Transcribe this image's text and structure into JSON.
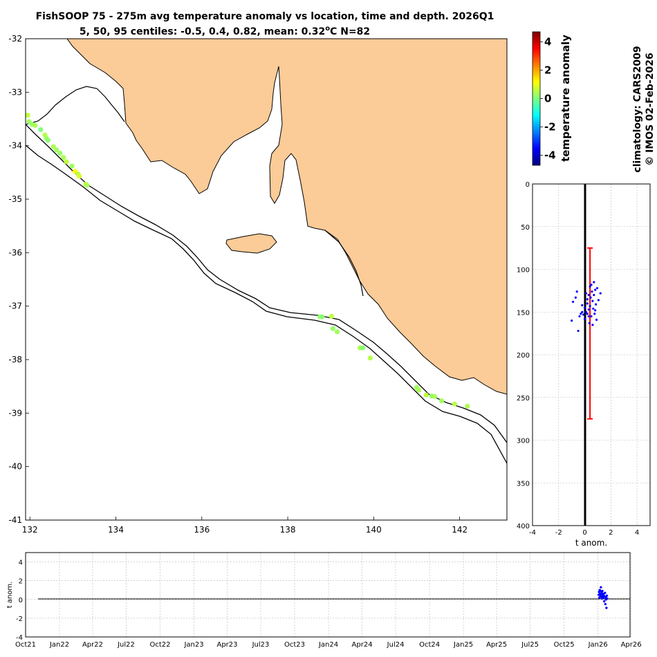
{
  "title": {
    "line1": "FishSOOP 75 - 275m avg temperature anomaly vs location, time and depth. 2026Q1",
    "line2_prefix": "5, 50, 95 centiles: -0.5, 0.4, 0.82, mean: 0.32",
    "line2_unit": "o",
    "line2_suffix": "C N=82"
  },
  "side_text": {
    "climatology": "climatology: CARS2009",
    "copyright": "© IMOS 02-Feb-2026"
  },
  "colorbar": {
    "label": "temperature anomaly",
    "range": [
      -4.7,
      4.7
    ],
    "ticks": [
      "4",
      "2",
      "0",
      "-2",
      "-4"
    ],
    "tick_values": [
      4,
      2,
      0,
      -2,
      -4
    ],
    "colors": [
      "#00007f",
      "#0000ff",
      "#007fff",
      "#00ffff",
      "#7fff7f",
      "#ffff00",
      "#ff7f00",
      "#ff0000",
      "#7f0000"
    ]
  },
  "colors": {
    "land": "#fbcb98",
    "depth_points": "#0000ff",
    "centile_bar": "#ff0000",
    "ocean": "#ffffff"
  },
  "chart_data": [
    {
      "type": "scatter",
      "name": "map",
      "xlim": [
        131.9,
        143.1
      ],
      "ylim": [
        -41,
        -32
      ],
      "xticks": [
        132,
        134,
        136,
        138,
        140,
        142
      ],
      "yticks": [
        -32,
        -33,
        -34,
        -35,
        -36,
        -37,
        -38,
        -39,
        -40,
        -41
      ],
      "xtick_labels": [
        "132",
        "134",
        "136",
        "138",
        "140",
        "142"
      ],
      "ytick_labels": [
        "-32",
        "-33",
        "-34",
        "-35",
        "-36",
        "-37",
        "-38",
        "-39",
        "-40",
        "-41"
      ],
      "points": [
        [
          131.95,
          -33.43,
          0.6
        ],
        [
          131.98,
          -33.55,
          0.3
        ],
        [
          132.05,
          -33.6,
          0.2
        ],
        [
          132.12,
          -33.62,
          0.4
        ],
        [
          132.25,
          -33.7,
          0.0
        ],
        [
          132.35,
          -33.8,
          0.5
        ],
        [
          132.38,
          -33.86,
          0.3
        ],
        [
          132.42,
          -33.9,
          0.1
        ],
        [
          132.55,
          -34.02,
          0.4
        ],
        [
          132.62,
          -34.08,
          0.3
        ],
        [
          132.7,
          -34.14,
          0.2
        ],
        [
          132.78,
          -34.22,
          0.4
        ],
        [
          132.85,
          -34.3,
          0.6
        ],
        [
          132.98,
          -34.38,
          0.3
        ],
        [
          133.05,
          -34.48,
          1.2
        ],
        [
          133.12,
          -34.53,
          0.5
        ],
        [
          133.15,
          -34.57,
          0.8
        ],
        [
          133.3,
          -34.72,
          0.6
        ],
        [
          133.33,
          -34.74,
          0.4
        ],
        [
          138.75,
          -37.2,
          0.2
        ],
        [
          138.8,
          -37.2,
          0.1
        ],
        [
          139.02,
          -37.19,
          0.6
        ],
        [
          139.05,
          -37.42,
          0.2
        ],
        [
          139.15,
          -37.48,
          0.3
        ],
        [
          139.68,
          -37.78,
          0.4
        ],
        [
          139.75,
          -37.78,
          0.1
        ],
        [
          139.92,
          -37.97,
          0.5
        ],
        [
          141.0,
          -38.52,
          0.3
        ],
        [
          141.05,
          -38.57,
          0.4
        ],
        [
          141.22,
          -38.66,
          0.6
        ],
        [
          141.35,
          -38.68,
          0.2
        ],
        [
          141.42,
          -38.69,
          0.4
        ],
        [
          141.58,
          -38.77,
          0.3
        ],
        [
          141.88,
          -38.83,
          0.5
        ],
        [
          142.18,
          -38.87,
          0.4
        ]
      ]
    },
    {
      "type": "scatter",
      "name": "depth_profile",
      "xlabel": "t anom.",
      "xlim": [
        -4,
        5
      ],
      "ylim": [
        0,
        400
      ],
      "xticks": [
        -4,
        -2,
        0,
        2,
        4
      ],
      "xtick_labels": [
        "-4",
        "-2",
        "0",
        "2",
        "4"
      ],
      "yticks": [
        0,
        50,
        100,
        150,
        200,
        250,
        300,
        350,
        400
      ],
      "ytick_labels": [
        "0",
        "50",
        "100",
        "150",
        "200",
        "250",
        "300",
        "350",
        "400"
      ],
      "centile_bar": {
        "x": 0.4,
        "y_top": 75,
        "y_bottom": 275
      },
      "points": [
        [
          -1.0,
          160
        ],
        [
          -0.9,
          138
        ],
        [
          -0.7,
          133
        ],
        [
          -0.6,
          126
        ],
        [
          -0.5,
          172
        ],
        [
          -0.4,
          155
        ],
        [
          -0.3,
          152
        ],
        [
          -0.2,
          150
        ],
        [
          -0.1,
          153
        ],
        [
          0.0,
          145
        ],
        [
          0.1,
          128
        ],
        [
          0.1,
          150
        ],
        [
          0.2,
          152
        ],
        [
          0.2,
          140
        ],
        [
          0.3,
          130
        ],
        [
          0.3,
          147
        ],
        [
          0.35,
          163
        ],
        [
          0.4,
          120
        ],
        [
          0.45,
          133
        ],
        [
          0.5,
          155
        ],
        [
          0.55,
          126
        ],
        [
          0.6,
          137
        ],
        [
          0.65,
          146
        ],
        [
          0.7,
          115
        ],
        [
          0.75,
          152
        ],
        [
          0.8,
          124
        ],
        [
          0.85,
          141
        ],
        [
          0.9,
          159
        ],
        [
          0.95,
          122
        ],
        [
          1.05,
          136
        ],
        [
          1.2,
          128
        ],
        [
          0.6,
          165
        ],
        [
          0.4,
          143
        ],
        [
          0.2,
          135
        ],
        [
          0.0,
          158
        ],
        [
          -0.2,
          142
        ],
        [
          0.5,
          118
        ],
        [
          0.7,
          130
        ],
        [
          0.3,
          155
        ],
        [
          0.8,
          148
        ]
      ]
    },
    {
      "type": "scatter",
      "name": "time_series",
      "ylabel": "t anom.",
      "xlim": [
        0,
        1640
      ],
      "ylim": [
        -4,
        5
      ],
      "yticks": [
        4,
        2,
        0,
        -2,
        -4
      ],
      "ytick_labels": [
        "4",
        "2",
        "0",
        "-2",
        "-4"
      ],
      "xticks": [
        0,
        92,
        182,
        273,
        365,
        457,
        547,
        638,
        730,
        822,
        913,
        1004,
        1096,
        1188,
        1278,
        1369,
        1461,
        1553,
        1643
      ],
      "xtick_labels": [
        "Oct21",
        "Jan22",
        "Apr22",
        "Jul22",
        "Oct22",
        "Jan23",
        "Apr23",
        "Jul23",
        "Oct23",
        "Jan24",
        "Apr24",
        "Jul24",
        "Oct24",
        "Jan25",
        "Apr25",
        "Jul25",
        "Oct25",
        "Jan26",
        "Apr26"
      ],
      "points": [
        [
          1555,
          0.5
        ],
        [
          1556,
          0.8
        ],
        [
          1557,
          0.2
        ],
        [
          1558,
          1.0
        ],
        [
          1559,
          0.6
        ],
        [
          1560,
          0.4
        ],
        [
          1561,
          1.3
        ],
        [
          1562,
          0.3
        ],
        [
          1563,
          0.7
        ],
        [
          1564,
          0.1
        ],
        [
          1565,
          0.9
        ],
        [
          1566,
          0.5
        ],
        [
          1567,
          0.2
        ],
        [
          1568,
          0.6
        ],
        [
          1569,
          0.4
        ],
        [
          1570,
          -0.2
        ],
        [
          1571,
          0.3
        ],
        [
          1572,
          0.7
        ],
        [
          1573,
          -0.5
        ],
        [
          1574,
          0.2
        ],
        [
          1575,
          0.0
        ],
        [
          1576,
          -0.9
        ],
        [
          1577,
          0.4
        ],
        [
          1578,
          0.1
        ],
        [
          1560,
          0.9
        ],
        [
          1564,
          0.6
        ],
        [
          1568,
          0.3
        ]
      ]
    }
  ]
}
